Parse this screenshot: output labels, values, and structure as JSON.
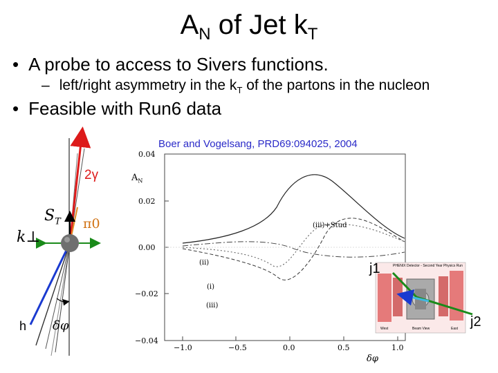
{
  "title": {
    "main": "A",
    "sub1": "N",
    "mid": " of Jet k",
    "sub2": "T"
  },
  "bullets": {
    "b1": "A probe to access to Sivers functions.",
    "b2_pre": "left/right asymmetry in the k",
    "b2_sub": "T",
    "b2_post": " of the partons in the nucleon",
    "b3": "Feasible with Run6 data"
  },
  "citation": "Boer and Vogelsang, PRD69:094025, 2004",
  "diagram": {
    "two_gamma": "2γ",
    "pi0": "π0",
    "st": "S",
    "st_sub": "T",
    "kperp": "k⊥",
    "h": "h",
    "dphi": "δφ",
    "j1": "j1",
    "j2": "j2"
  },
  "plot": {
    "ylabel": "A",
    "ylabel_sub": "N",
    "xlabel": "δφ",
    "yticks": [
      "0.04",
      "0.02",
      "0.00",
      "−0.02",
      "−0.04"
    ],
    "xticks": [
      "−1.0",
      "−0.5",
      "0.0",
      "0.5",
      "1.0"
    ],
    "curve_labels": [
      "(iii)+Stud",
      "(ii)",
      "(i)",
      "(iii)"
    ]
  },
  "detector": {
    "header": "PHENIX Detector - Second Year Physics Run",
    "footer": "Beam View",
    "west": "West",
    "east": "East"
  },
  "colors": {
    "arrow_red": "#dd1a1a",
    "arrow_green": "#1a8a1a",
    "arrow_blue": "#1a3ad0",
    "cite": "#2a2ac8",
    "pi0": "#d07010"
  }
}
